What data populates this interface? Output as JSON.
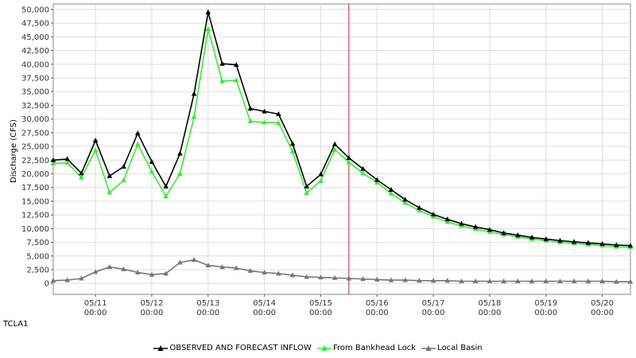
{
  "station": "TCLA1",
  "colors": {
    "observed": "#000000",
    "bankhead": "#33ee33",
    "local": "#777777",
    "now_line": "#bb2222",
    "grid": "#dddddd",
    "plot_border": "#888888"
  },
  "legend": [
    {
      "name": "OBSERVED AND FORECAST INFLOW",
      "icon": "triangle-up-icon"
    },
    {
      "name": "From Bankhead Lock",
      "icon": "triangle-up-icon"
    },
    {
      "name": "Local Basin",
      "icon": "triangle-up-icon"
    }
  ],
  "chart_data": {
    "type": "line",
    "ylabel": "Discharge (CFS)",
    "xlabel": "",
    "ylim": [
      -2000,
      51000
    ],
    "xlim": [
      0,
      10.25
    ],
    "yticks": [
      0,
      2500,
      5000,
      7500,
      10000,
      12500,
      15000,
      17500,
      20000,
      22500,
      25000,
      27500,
      30000,
      32500,
      35000,
      37500,
      40000,
      42500,
      45000,
      47500,
      50000
    ],
    "ytick_labels": [
      "0",
      "2,500",
      "5,000",
      "7,500",
      "10,000",
      "12,500",
      "15,000",
      "17,500",
      "20,000",
      "22,500",
      "25,000",
      "27,500",
      "30,000",
      "32,500",
      "35,000",
      "37,500",
      "40,000",
      "42,500",
      "45,000",
      "47,500",
      "50,000"
    ],
    "xticks": [
      {
        "x": 0.75,
        "date": "05/11",
        "time": "00:00"
      },
      {
        "x": 1.75,
        "date": "05/12",
        "time": "00:00"
      },
      {
        "x": 2.75,
        "date": "05/13",
        "time": "00:00"
      },
      {
        "x": 3.75,
        "date": "05/14",
        "time": "00:00"
      },
      {
        "x": 4.75,
        "date": "05/15",
        "time": "00:00"
      },
      {
        "x": 5.75,
        "date": "05/16",
        "time": "00:00"
      },
      {
        "x": 6.75,
        "date": "05/17",
        "time": "00:00"
      },
      {
        "x": 7.75,
        "date": "05/18",
        "time": "00:00"
      },
      {
        "x": 8.75,
        "date": "05/19",
        "time": "00:00"
      },
      {
        "x": 9.75,
        "date": "05/20",
        "time": "00:00"
      }
    ],
    "now_x": 5.25,
    "grid": true,
    "legend_position": "bottom",
    "x": [
      0,
      0.25,
      0.5,
      0.75,
      1,
      1.25,
      1.5,
      1.75,
      2,
      2.25,
      2.5,
      2.75,
      3,
      3.25,
      3.5,
      3.75,
      4,
      4.25,
      4.5,
      4.75,
      5,
      5.25,
      5.5,
      5.75,
      6,
      6.25,
      6.5,
      6.75,
      7,
      7.25,
      7.5,
      7.75,
      8,
      8.25,
      8.5,
      8.75,
      9,
      9.25,
      9.5,
      9.75,
      10,
      10.25
    ],
    "series": [
      {
        "name": "OBSERVED AND FORECAST INFLOW",
        "color_key": "observed",
        "values": [
          22500,
          22700,
          20100,
          26100,
          19600,
          21300,
          27400,
          22200,
          17700,
          23700,
          34600,
          49500,
          40100,
          39900,
          31900,
          31400,
          30900,
          25500,
          17700,
          19900,
          25400,
          22900,
          20900,
          18900,
          17100,
          15300,
          13800,
          12600,
          11700,
          10900,
          10300,
          9800,
          9200,
          8800,
          8400,
          8100,
          7800,
          7600,
          7400,
          7200,
          7000,
          6900
        ]
      },
      {
        "name": "From Bankhead Lock",
        "color_key": "bankhead",
        "values": [
          21900,
          22000,
          19300,
          24300,
          16600,
          18800,
          25400,
          20400,
          15900,
          20000,
          30400,
          46400,
          36900,
          37100,
          29600,
          29400,
          29300,
          24100,
          16500,
          18700,
          24400,
          22100,
          20100,
          18400,
          16400,
          14700,
          13300,
          12200,
          11200,
          10500,
          9900,
          9400,
          8900,
          8500,
          8100,
          7800,
          7500,
          7300,
          7100,
          6900,
          6700,
          6600
        ]
      },
      {
        "name": "Local Basin",
        "color_key": "local",
        "values": [
          500,
          600,
          900,
          2100,
          3000,
          2600,
          2000,
          1600,
          1800,
          3800,
          4300,
          3300,
          3000,
          2800,
          2300,
          2000,
          1800,
          1500,
          1200,
          1100,
          1000,
          900,
          800,
          700,
          600,
          600,
          500,
          500,
          500,
          400,
          400,
          400,
          400,
          400,
          400,
          400,
          400,
          400,
          400,
          400,
          300,
          300
        ]
      }
    ]
  }
}
